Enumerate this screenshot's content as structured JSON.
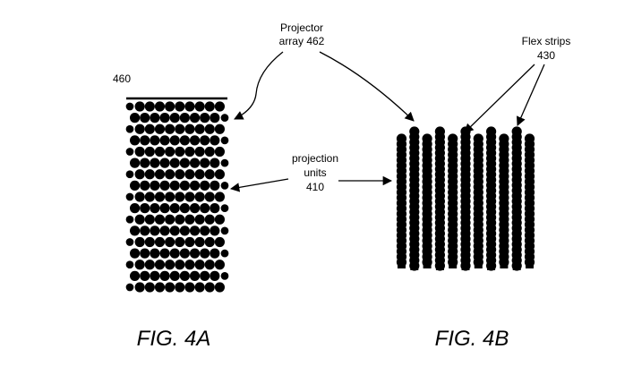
{
  "labels": {
    "ref_460": "460",
    "projector_array_line1": "Projector",
    "projector_array_line2": "array 462",
    "flex_strips_line1": "Flex strips",
    "flex_strips_line2": "430",
    "projection_units_line1": "projection",
    "projection_units_line2": "units",
    "projection_units_line3": "410"
  },
  "figures": {
    "fig_a_caption": "FIG. 4A",
    "fig_b_caption": "FIG. 4B"
  },
  "fig_4a": {
    "dot_columns": 10,
    "dot_rows": 17
  },
  "fig_4b": {
    "strip_count": 11
  },
  "colors": {
    "ink": "#000000",
    "background": "#ffffff"
  }
}
